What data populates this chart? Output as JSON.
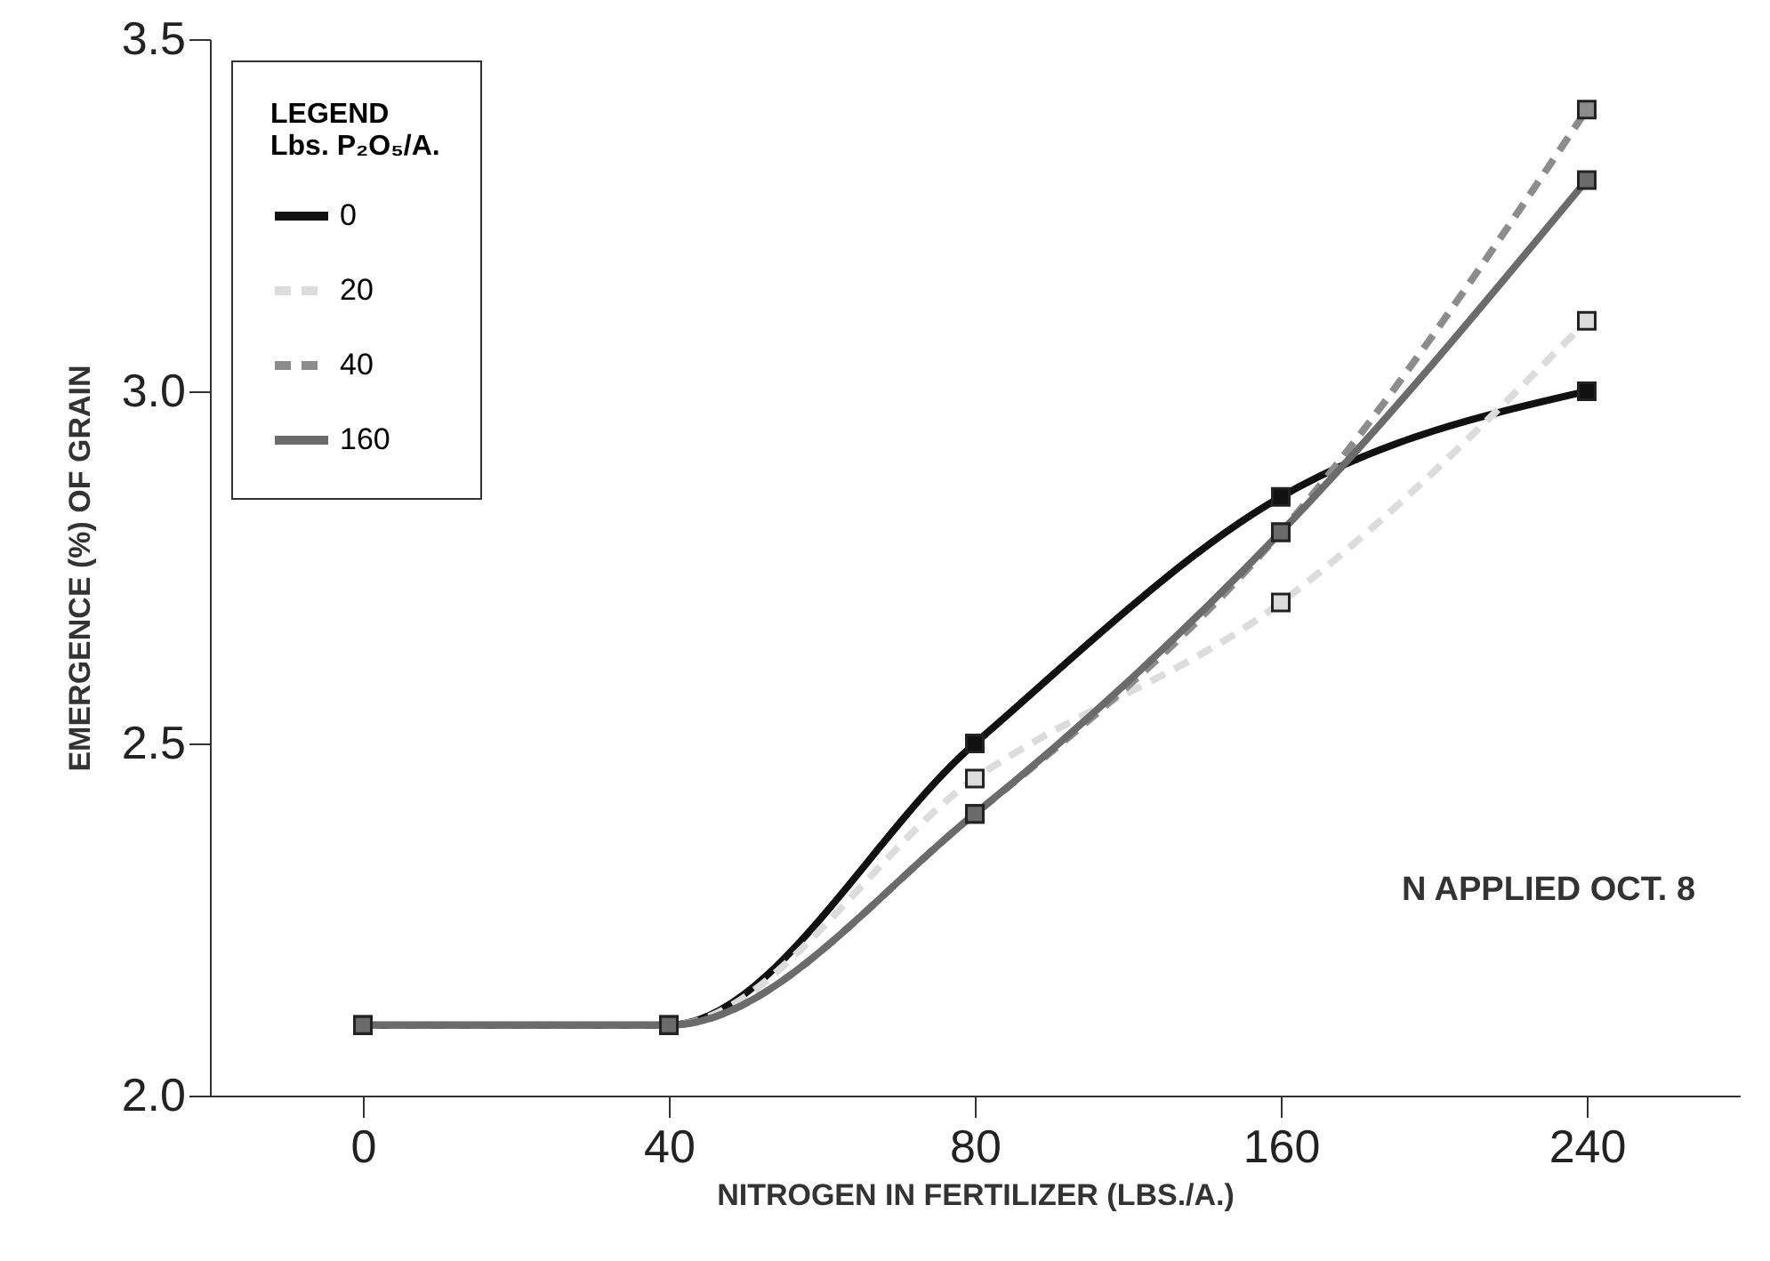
{
  "chart_data": {
    "type": "line",
    "xlabel": "NITROGEN IN FERTILIZER (LBS./A.)",
    "ylabel": "EMERGENCE (%) OF GRAIN",
    "legend_title": "LEGEND\nLbs. P₂O₅/A.",
    "annotations": [
      "N APPLIED OCT. 8"
    ],
    "categories": [
      "0",
      "40",
      "80",
      "160",
      "240"
    ],
    "series": [
      {
        "name": "0",
        "color": "#111111",
        "line_style": "solid",
        "values": [
          2.1,
          2.1,
          2.5,
          2.85,
          3.0
        ]
      },
      {
        "name": "20",
        "color": "#dcdcdc",
        "line_style": "dashed",
        "values": [
          2.1,
          2.1,
          2.45,
          2.7,
          3.1
        ]
      },
      {
        "name": "40",
        "color": "#8c8c8c",
        "line_style": "dashed",
        "values": [
          2.1,
          2.1,
          2.4,
          2.8,
          3.4
        ]
      },
      {
        "name": "160",
        "color": "#6b6b6b",
        "line_style": "solid",
        "values": [
          2.1,
          2.1,
          2.4,
          2.8,
          3.3
        ]
      }
    ],
    "ylim": [
      2.0,
      3.5
    ],
    "yticks": [
      {
        "value": 2.0,
        "label": "2.0"
      },
      2.5,
      {
        "value": 3.0,
        "label": "3.0"
      },
      3.5
    ],
    "marker": "square",
    "legend": "top left",
    "grid": false
  }
}
